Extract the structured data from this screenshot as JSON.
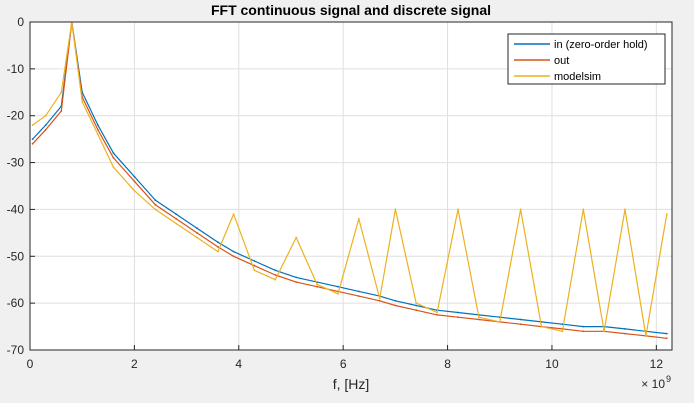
{
  "chart_data": {
    "type": "line",
    "title": "FFT continuous signal and discrete signal",
    "xlabel": "f, [Hz]",
    "ylabel": "",
    "xlim": [
      0,
      12.3
    ],
    "ylim": [
      -70,
      0
    ],
    "x_exponent_label": "× 10",
    "x_exponent_power": "9",
    "xticks": [
      0,
      2,
      4,
      6,
      8,
      10,
      12
    ],
    "xtick_labels": [
      "0",
      "2",
      "4",
      "6",
      "8",
      "10",
      "12"
    ],
    "yticks": [
      0,
      -10,
      -20,
      -30,
      -40,
      -50,
      -60,
      -70
    ],
    "ytick_labels": [
      "0",
      "-10",
      "-20",
      "-30",
      "-40",
      "-50",
      "-60",
      "-70"
    ],
    "grid": true,
    "legend_position": "top-right",
    "series": [
      {
        "name": "in (zero-order hold)",
        "color": "#0072bd",
        "x": [
          0.05,
          0.3,
          0.6,
          0.8,
          1.0,
          1.3,
          1.6,
          2.0,
          2.4,
          2.8,
          3.2,
          3.6,
          3.9,
          4.3,
          4.7,
          5.1,
          5.5,
          5.9,
          6.3,
          6.7,
          7.0,
          7.4,
          7.8,
          8.2,
          8.6,
          9.0,
          9.4,
          9.8,
          10.2,
          10.6,
          11.0,
          11.4,
          11.8,
          12.2
        ],
        "values": [
          -25,
          -22,
          -18,
          0,
          -15,
          -22,
          -28,
          -33,
          -38,
          -41,
          -44,
          -47,
          -49,
          -51,
          -53,
          -54.5,
          -55.5,
          -56.5,
          -57.5,
          -58.5,
          -59.5,
          -60.5,
          -61.5,
          -62,
          -62.5,
          -63,
          -63.5,
          -64,
          -64.5,
          -65,
          -65,
          -65.5,
          -66,
          -66.5
        ]
      },
      {
        "name": "out",
        "color": "#d95319",
        "x": [
          0.05,
          0.3,
          0.6,
          0.8,
          1.0,
          1.3,
          1.6,
          2.0,
          2.4,
          2.8,
          3.2,
          3.6,
          3.9,
          4.3,
          4.7,
          5.1,
          5.5,
          5.9,
          6.3,
          6.7,
          7.0,
          7.4,
          7.8,
          8.2,
          8.6,
          9.0,
          9.4,
          9.8,
          10.2,
          10.6,
          11.0,
          11.4,
          11.8,
          12.2
        ],
        "values": [
          -26,
          -23,
          -19,
          0,
          -16,
          -23,
          -29,
          -34,
          -39,
          -42,
          -45,
          -48,
          -50,
          -52,
          -54,
          -55.5,
          -56.5,
          -57.5,
          -58.5,
          -59.5,
          -60.5,
          -61.5,
          -62.5,
          -63,
          -63.5,
          -64,
          -64.5,
          -65,
          -65.5,
          -66,
          -66,
          -66.5,
          -67,
          -67.5
        ]
      },
      {
        "name": "modelsim",
        "color": "#edb120",
        "x": [
          0.05,
          0.3,
          0.6,
          0.8,
          1.0,
          1.3,
          1.6,
          2.0,
          2.4,
          2.8,
          3.2,
          3.6,
          3.9,
          4.3,
          4.7,
          5.1,
          5.5,
          5.9,
          6.3,
          6.7,
          7.0,
          7.4,
          7.8,
          8.2,
          8.6,
          9.0,
          9.4,
          9.8,
          10.2,
          10.6,
          11.0,
          11.4,
          11.8,
          12.2
        ],
        "values": [
          -22,
          -20,
          -15,
          0,
          -17,
          -24,
          -31,
          -36,
          -40,
          -43,
          -46,
          -49,
          -41,
          -53,
          -55,
          -46,
          -56,
          -58,
          -42,
          -59,
          -40,
          -60,
          -62,
          -40,
          -63,
          -64,
          -40,
          -65,
          -66,
          -40,
          -66,
          -40,
          -67,
          -41
        ]
      }
    ]
  }
}
